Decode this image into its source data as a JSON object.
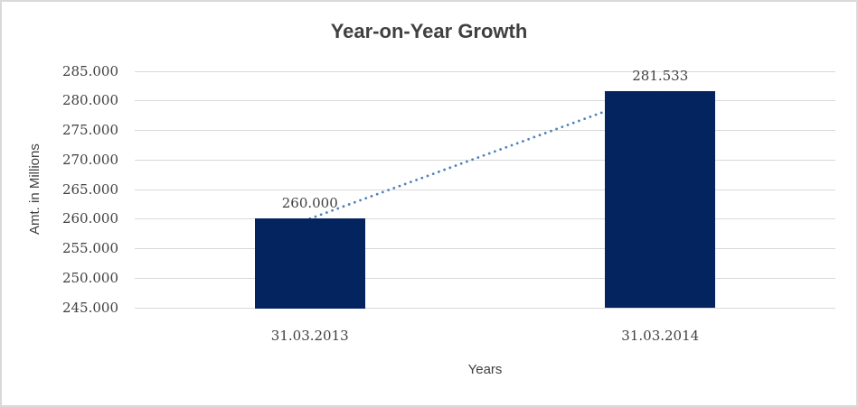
{
  "chart_data": {
    "type": "bar",
    "title": "Year-on-Year Growth",
    "xlabel": "Years",
    "ylabel": "Amt. in Millions",
    "categories": [
      "31.03.2013",
      "31.03.2014"
    ],
    "series": [
      {
        "name": "Amt. in Millions",
        "values": [
          260.0,
          281.533
        ],
        "value_labels": [
          "260.000",
          "281.533"
        ]
      }
    ],
    "ylim": [
      245,
      285
    ],
    "ytick_step": 5,
    "ytick_labels": [
      "245.000",
      "250.000",
      "255.000",
      "260.000",
      "265.000",
      "270.000",
      "275.000",
      "280.000",
      "285.000"
    ],
    "grid": "horizontal-major",
    "legend": "none",
    "trendline": {
      "type": "linear",
      "style": "dotted",
      "connects": "bar-tops",
      "from_point": [
        0,
        260.0
      ],
      "to_point": [
        1,
        281.533
      ]
    },
    "colors": {
      "bar": "#03245f",
      "trendline": "#4f81bd",
      "gridline": "#d9d9d9",
      "text": "#404040",
      "background": "#ffffff",
      "frame_border": "#d9d9d9"
    }
  }
}
